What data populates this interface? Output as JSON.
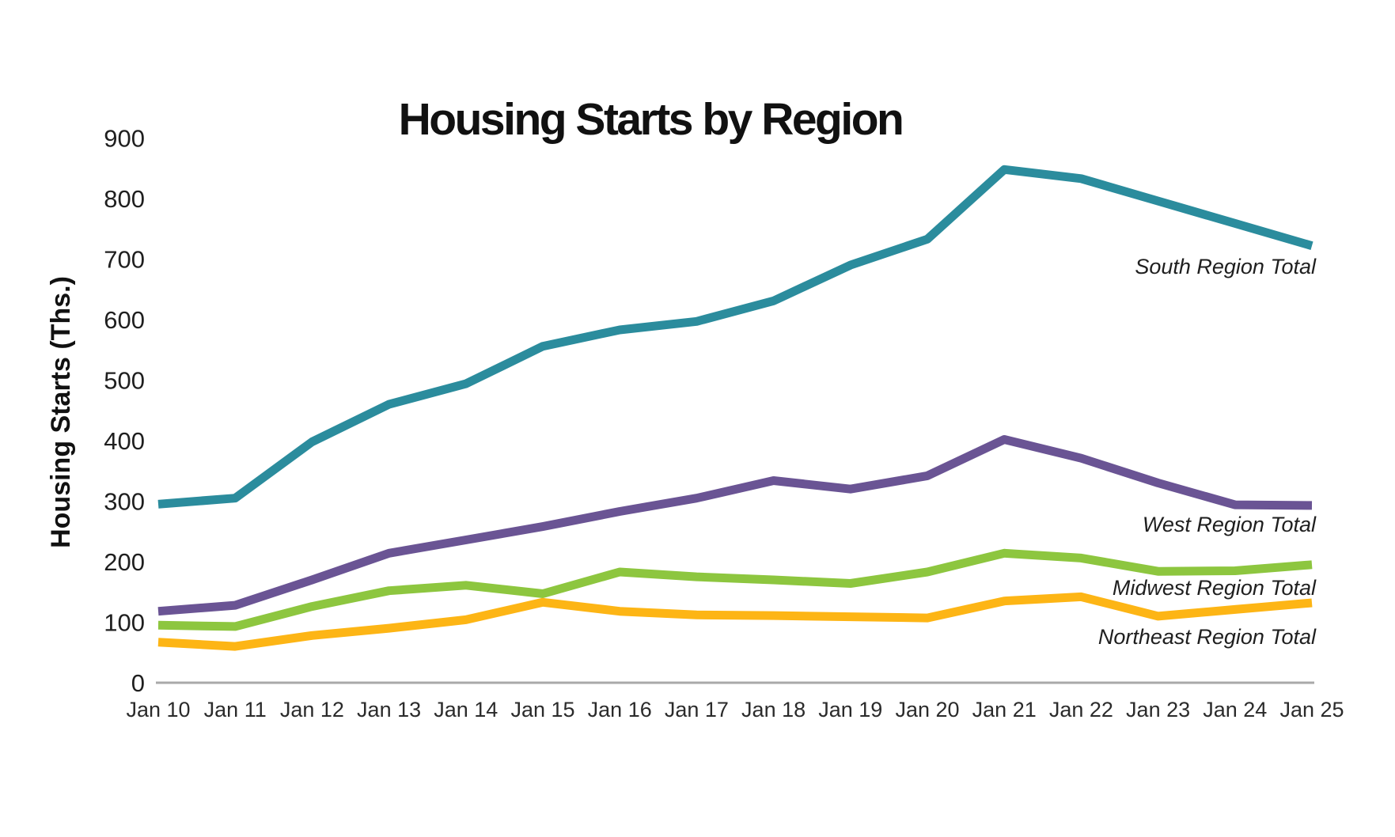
{
  "title": "Housing Starts by Region",
  "background": "#FFFFFF",
  "text_color": "#1A1A1A",
  "axis_color": "#A9A9A9",
  "chart_data": {
    "type": "line",
    "title": "Housing Starts by Region",
    "xlabel": "",
    "ylabel": "Housing Starts (Ths.)",
    "ylim": [
      0,
      900
    ],
    "ytick_step": 100,
    "yticks": [
      0,
      100,
      200,
      300,
      400,
      500,
      600,
      700,
      800,
      900
    ],
    "grid": false,
    "legend_position": "inline-right-of-lines",
    "categories": [
      "Jan 10",
      "Jan 11",
      "Jan 12",
      "Jan 13",
      "Jan 14",
      "Jan 15",
      "Jan 16",
      "Jan 17",
      "Jan 18",
      "Jan 19",
      "Jan 20",
      "Jan 21",
      "Jan 22",
      "Jan 23",
      "Jan 24",
      "Jan 25"
    ],
    "series": [
      {
        "name": "South Region Total",
        "color": "#2B8C9D",
        "values": [
          295,
          305,
          398,
          460,
          494,
          556,
          583,
          597,
          631,
          690,
          733,
          848,
          833,
          796,
          759,
          722
        ]
      },
      {
        "name": "West Region Total",
        "color": "#6A5494",
        "values": [
          118,
          128,
          170,
          214,
          236,
          258,
          283,
          305,
          334,
          320,
          342,
          402,
          371,
          330,
          294,
          293
        ]
      },
      {
        "name": "Midwest Region Total",
        "color": "#8DC63F",
        "values": [
          95,
          93,
          126,
          152,
          161,
          147,
          183,
          175,
          170,
          164,
          183,
          214,
          206,
          184,
          185,
          195
        ]
      },
      {
        "name": "Northeast Region Total",
        "color": "#FDB515",
        "values": [
          67,
          60,
          78,
          90,
          104,
          133,
          118,
          112,
          111,
          109,
          107,
          135,
          142,
          110,
          121,
          132
        ]
      }
    ]
  }
}
